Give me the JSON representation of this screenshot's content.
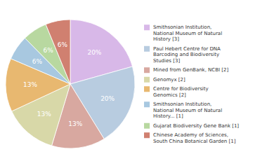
{
  "chart_data": {
    "type": "pie",
    "categories": [
      "Smithsonian Institution,\nNational Museum of Natural\nHistory [3]",
      "Paul Hebert Centre for DNA\nBarcoding and Biodiversity\nStudies [3]",
      "Mined from GenBank, NCBI [2]",
      "Genomyx [2]",
      "Centre for Biodiversity\nGenomics [2]",
      "Smithsonian Institution,\nNational Museum of Natural\nHistory... [1]",
      "Gujarat Biodiversity Gene Bank [1]",
      "Chinese Academy of Sciences,\nSouth China Botanical Garden [1]"
    ],
    "values": [
      20,
      20,
      13,
      13,
      13,
      6,
      6,
      6
    ],
    "value_labels": [
      "20%",
      "20%",
      "13%",
      "13%",
      "13%",
      "6%",
      "6%",
      "6%"
    ],
    "colors": [
      "#d8b8e8",
      "#b8cce0",
      "#d8a8a0",
      "#d8d8a8",
      "#e8b870",
      "#a8c8e0",
      "#b8d8a0",
      "#d08070"
    ],
    "data_labels": true,
    "legend": "right"
  }
}
